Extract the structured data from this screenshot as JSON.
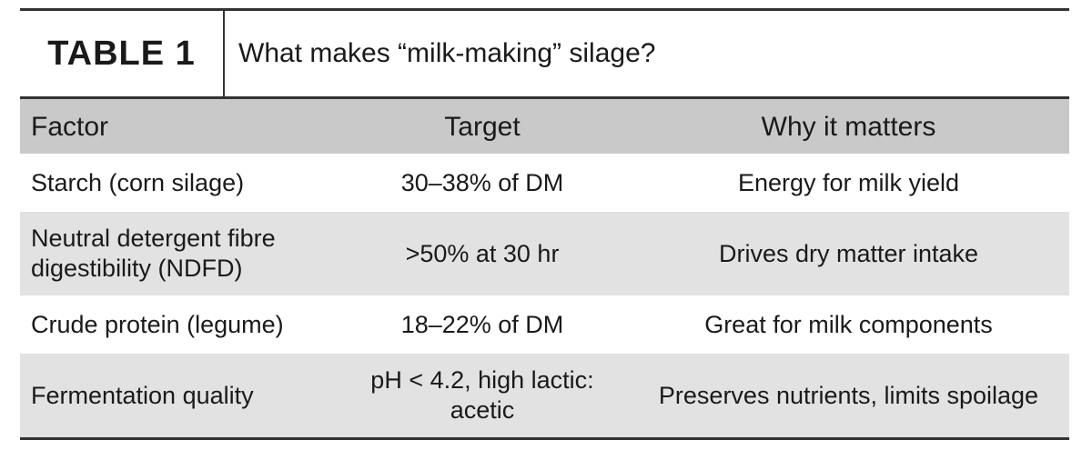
{
  "header": {
    "label": "TABLE 1",
    "title": "What makes “milk-making” silage?"
  },
  "table": {
    "columns": [
      "Factor",
      "Target",
      "Why it matters"
    ],
    "rows": [
      [
        "Starch (corn silage)",
        "30–38% of DM",
        "Energy for milk yield"
      ],
      [
        "Neutral detergent fibre digestibility (NDFD)",
        ">50% at 30 hr",
        "Drives dry matter intake"
      ],
      [
        "Crude protein (legume)",
        "18–22% of DM",
        "Great for milk components"
      ],
      [
        "Fermentation quality",
        "pH < 4.2, high lactic: acetic",
        "Preserves nutrients, limits spoilage"
      ]
    ]
  }
}
